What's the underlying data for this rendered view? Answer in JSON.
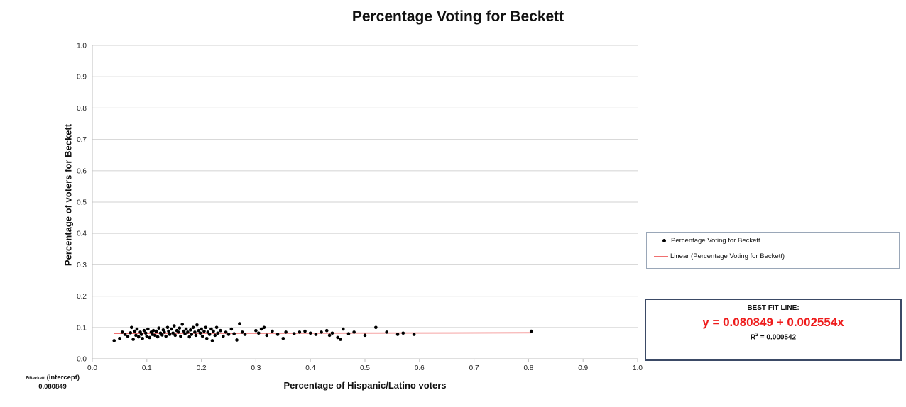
{
  "chart_data": {
    "type": "scatter",
    "title": "Percentage Voting for Beckett",
    "xlabel": "Percentage of Hispanic/Latino voters",
    "ylabel": "Percentage of voters for Beckett",
    "xlim": [
      0.0,
      1.0
    ],
    "ylim": [
      0.0,
      1.0
    ],
    "x_ticks": [
      "0.0",
      "0.1",
      "0.2",
      "0.3",
      "0.4",
      "0.5",
      "0.6",
      "0.7",
      "0.8",
      "0.9",
      "1.0"
    ],
    "y_ticks": [
      "0.0",
      "0.1",
      "0.2",
      "0.3",
      "0.4",
      "0.5",
      "0.6",
      "0.7",
      "0.8",
      "0.9",
      "1.0"
    ],
    "grid": "horizontal",
    "legend_position": "right",
    "series": [
      {
        "name": "Percentage Voting for Beckett",
        "marker_color": "#000000",
        "points": [
          [
            0.04,
            0.058
          ],
          [
            0.05,
            0.065
          ],
          [
            0.055,
            0.085
          ],
          [
            0.06,
            0.078
          ],
          [
            0.065,
            0.072
          ],
          [
            0.07,
            0.083
          ],
          [
            0.072,
            0.1
          ],
          [
            0.075,
            0.062
          ],
          [
            0.078,
            0.088
          ],
          [
            0.08,
            0.075
          ],
          [
            0.082,
            0.095
          ],
          [
            0.085,
            0.07
          ],
          [
            0.088,
            0.085
          ],
          [
            0.09,
            0.078
          ],
          [
            0.092,
            0.065
          ],
          [
            0.095,
            0.09
          ],
          [
            0.098,
            0.082
          ],
          [
            0.1,
            0.072
          ],
          [
            0.102,
            0.095
          ],
          [
            0.105,
            0.068
          ],
          [
            0.108,
            0.085
          ],
          [
            0.11,
            0.078
          ],
          [
            0.112,
            0.09
          ],
          [
            0.115,
            0.075
          ],
          [
            0.118,
            0.088
          ],
          [
            0.12,
            0.07
          ],
          [
            0.122,
            0.098
          ],
          [
            0.125,
            0.082
          ],
          [
            0.128,
            0.076
          ],
          [
            0.13,
            0.092
          ],
          [
            0.132,
            0.085
          ],
          [
            0.135,
            0.072
          ],
          [
            0.138,
            0.1
          ],
          [
            0.14,
            0.088
          ],
          [
            0.142,
            0.078
          ],
          [
            0.145,
            0.095
          ],
          [
            0.148,
            0.082
          ],
          [
            0.15,
            0.105
          ],
          [
            0.152,
            0.075
          ],
          [
            0.155,
            0.09
          ],
          [
            0.158,
            0.085
          ],
          [
            0.16,
            0.098
          ],
          [
            0.162,
            0.072
          ],
          [
            0.165,
            0.11
          ],
          [
            0.168,
            0.088
          ],
          [
            0.17,
            0.08
          ],
          [
            0.172,
            0.095
          ],
          [
            0.175,
            0.085
          ],
          [
            0.178,
            0.07
          ],
          [
            0.18,
            0.092
          ],
          [
            0.182,
            0.078
          ],
          [
            0.185,
            0.1
          ],
          [
            0.188,
            0.085
          ],
          [
            0.19,
            0.075
          ],
          [
            0.192,
            0.108
          ],
          [
            0.195,
            0.09
          ],
          [
            0.198,
            0.082
          ],
          [
            0.2,
            0.095
          ],
          [
            0.202,
            0.072
          ],
          [
            0.205,
            0.088
          ],
          [
            0.208,
            0.1
          ],
          [
            0.21,
            0.065
          ],
          [
            0.212,
            0.085
          ],
          [
            0.215,
            0.078
          ],
          [
            0.218,
            0.095
          ],
          [
            0.22,
            0.058
          ],
          [
            0.222,
            0.088
          ],
          [
            0.225,
            0.075
          ],
          [
            0.228,
            0.1
          ],
          [
            0.23,
            0.082
          ],
          [
            0.235,
            0.09
          ],
          [
            0.24,
            0.072
          ],
          [
            0.245,
            0.085
          ],
          [
            0.25,
            0.078
          ],
          [
            0.255,
            0.095
          ],
          [
            0.26,
            0.08
          ],
          [
            0.265,
            0.06
          ],
          [
            0.27,
            0.112
          ],
          [
            0.275,
            0.085
          ],
          [
            0.28,
            0.078
          ],
          [
            0.3,
            0.09
          ],
          [
            0.305,
            0.082
          ],
          [
            0.31,
            0.095
          ],
          [
            0.315,
            0.1
          ],
          [
            0.32,
            0.075
          ],
          [
            0.33,
            0.088
          ],
          [
            0.34,
            0.078
          ],
          [
            0.35,
            0.065
          ],
          [
            0.355,
            0.085
          ],
          [
            0.37,
            0.08
          ],
          [
            0.38,
            0.085
          ],
          [
            0.39,
            0.088
          ],
          [
            0.4,
            0.082
          ],
          [
            0.41,
            0.078
          ],
          [
            0.42,
            0.085
          ],
          [
            0.43,
            0.09
          ],
          [
            0.435,
            0.075
          ],
          [
            0.44,
            0.082
          ],
          [
            0.45,
            0.068
          ],
          [
            0.455,
            0.062
          ],
          [
            0.46,
            0.095
          ],
          [
            0.47,
            0.08
          ],
          [
            0.48,
            0.085
          ],
          [
            0.5,
            0.075
          ],
          [
            0.52,
            0.1
          ],
          [
            0.54,
            0.085
          ],
          [
            0.56,
            0.078
          ],
          [
            0.57,
            0.082
          ],
          [
            0.59,
            0.078
          ],
          [
            0.805,
            0.088
          ]
        ]
      },
      {
        "name": "Linear (Percentage Voting for Beckett)",
        "line_color": "#f07070",
        "intercept": 0.080849,
        "slope": 0.002554,
        "x_range": [
          0.04,
          0.805
        ]
      }
    ]
  },
  "fit_box": {
    "heading": "BEST FIT LINE:",
    "equation": "y = 0.080849 + 0.002554x",
    "r2_prefix": "R",
    "r2_sup": "2",
    "r2_value": " = 0.000542"
  },
  "intercept_note": {
    "symbol": "a",
    "subscript": "Beckett",
    "label": " (intercept)",
    "value": "0.080849"
  },
  "colors": {
    "grid": "#d9d9d9",
    "axis": "#bfbfbf",
    "equation": "#ee1c1c",
    "fit_box_border": "#3b4a66",
    "legend_border": "#9aa7b8"
  }
}
